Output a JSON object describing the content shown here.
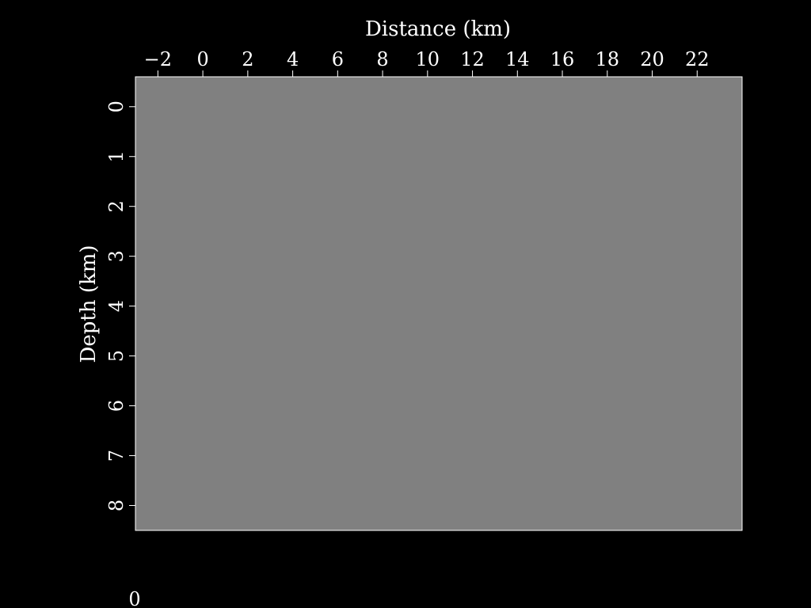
{
  "chart_data": {
    "type": "heatmap",
    "xlabel": "Distance (km)",
    "ylabel": "Depth (km)",
    "x_axis_position": "top",
    "y_axis_reversed": true,
    "xlim": [
      -3,
      24
    ],
    "ylim": [
      -0.6,
      8.5
    ],
    "x_ticks": [
      -2,
      0,
      2,
      4,
      6,
      8,
      10,
      12,
      14,
      16,
      18,
      20,
      22
    ],
    "x_tick_labels": [
      "−2",
      "0",
      "2",
      "4",
      "6",
      "8",
      "10",
      "12",
      "14",
      "16",
      "18",
      "20",
      "22"
    ],
    "y_ticks": [
      0,
      1,
      2,
      3,
      4,
      5,
      6,
      7,
      8
    ],
    "y_tick_labels": [
      "0",
      "1",
      "2",
      "3",
      "4",
      "5",
      "6",
      "7",
      "8"
    ],
    "field_value": 0,
    "field_color": "#808080",
    "colorbar_label": "0",
    "grid": false,
    "background_color": "#000000",
    "foreground_color": "#ffffff"
  }
}
